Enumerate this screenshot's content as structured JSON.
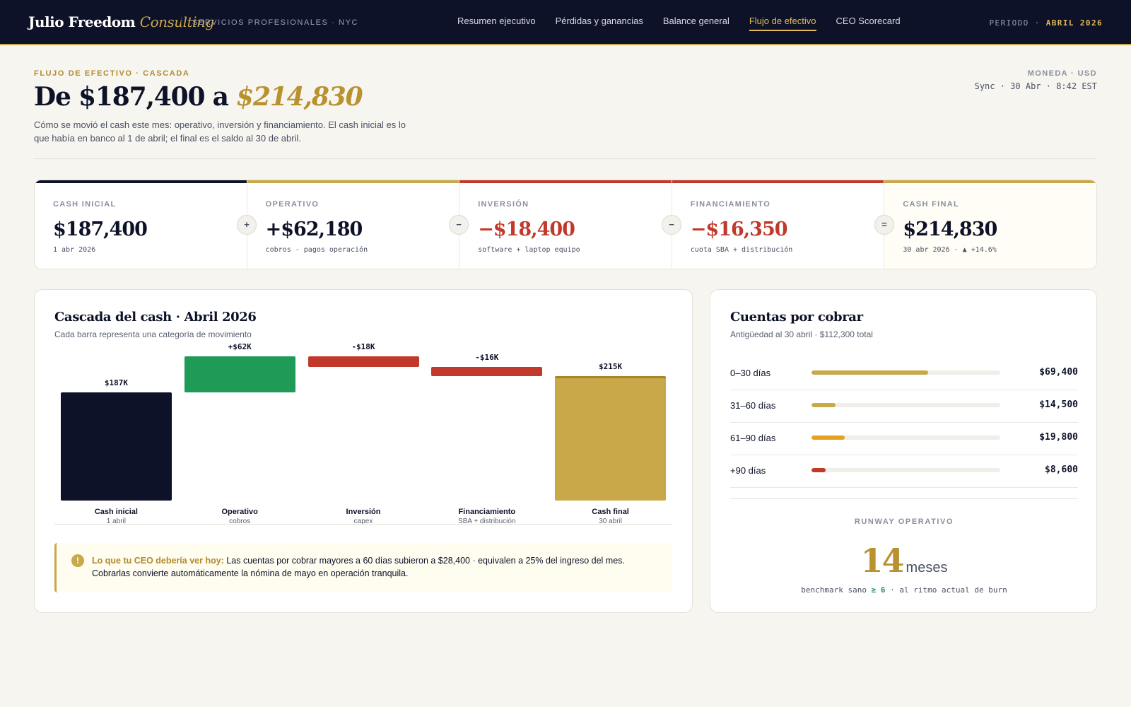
{
  "header": {
    "brand_main": "Julio Freedom",
    "brand_accent": "Consulting",
    "brand_sub": "SERVICIOS PROFESIONALES · NYC",
    "nav": [
      {
        "label": "Resumen ejecutivo"
      },
      {
        "label": "Pérdidas y ganancias"
      },
      {
        "label": "Balance general"
      },
      {
        "label": "Flujo de efectivo"
      },
      {
        "label": "CEO Scorecard"
      }
    ],
    "active_nav": "Flujo de efectivo",
    "period_label": "PERIODO ·",
    "period_value": "ABRIL 2026"
  },
  "page": {
    "eyebrow": "FLUJO DE EFECTIVO · CASCADA",
    "title_main": "De $187,400 a",
    "title_accent": "$214,830",
    "description": "Cómo se movió el cash este mes: operativo, inversión y financiamiento. El cash inicial es lo que había en banco al 1 de abril; el final es el saldo al 30 de abril.",
    "currency": "MONEDA · USD",
    "sync": "Sync · 30 Abr · 8:42 EST"
  },
  "kpis": [
    {
      "label": "CASH INICIAL",
      "value": "$187,400",
      "note": "1 abr 2026",
      "color": "#0d1228",
      "value_color": "#0d1228"
    },
    {
      "label": "OPERATIVO",
      "value": "+$62,180",
      "note": "cobros - pagos operación",
      "color": "#c9a84a",
      "value_color": "#0d1228"
    },
    {
      "label": "INVERSIÓN",
      "value": "−$18,400",
      "note": "software + laptop equipo",
      "color": "#c0392b",
      "value_color": "#c0392b"
    },
    {
      "label": "FINANCIAMIENTO",
      "value": "−$16,350",
      "note": "cuota SBA + distribución",
      "color": "#c0392b",
      "value_color": "#c0392b"
    },
    {
      "label": "CASH FINAL",
      "value": "$214,830",
      "note": "30 abr 2026 · ▲ +14.6%",
      "color": "#c9a84a",
      "value_color": "#0d1228"
    }
  ],
  "operators": [
    "+",
    "−",
    "−",
    "="
  ],
  "waterfall": {
    "title": "Cascada del cash · Abril 2026",
    "subtitle": "Cada barra representa una categoría de movimiento"
  },
  "chart_data": {
    "type": "bar",
    "subtype": "waterfall",
    "categories": [
      "Cash inicial",
      "Operativo",
      "Inversión",
      "Financiamiento",
      "Cash final"
    ],
    "category_subs": [
      "1 abril",
      "cobros",
      "capex",
      "SBA + distribución",
      "30 abril"
    ],
    "values": [
      187400,
      62180,
      -18400,
      -16350,
      214830
    ],
    "data_labels": [
      "$187K",
      "+$62K",
      "-$18K",
      "-$16K",
      "$215K"
    ],
    "kinds": [
      "total",
      "delta",
      "delta",
      "delta",
      "total"
    ],
    "colors": [
      "#0d1228",
      "#1f9a57",
      "#c0392b",
      "#c0392b",
      "#c9a84a"
    ],
    "ylim": [
      0,
      230000
    ]
  },
  "alert": {
    "lead": "Lo que tu CEO debería ver hoy:",
    "text": "Las cuentas por cobrar mayores a 60 días subieron a $28,400 · equivalen a 25% del ingreso del mes. Cobrarlas convierte automáticamente la nómina de mayo en operación tranquila.",
    "icon": "exclamation-icon"
  },
  "receivables": {
    "title": "Cuentas por cobrar",
    "subtitle": "Antigüedad al 30 abril · $112,300 total",
    "rows": [
      {
        "label": "0–30 días",
        "amount": "$69,400",
        "value": 69400,
        "color": "#c9a84a"
      },
      {
        "label": "31–60 días",
        "amount": "$14,500",
        "value": 14500,
        "color": "#c9a84a"
      },
      {
        "label": "61–90 días",
        "amount": "$19,800",
        "value": 19800,
        "color": "#e8a020"
      },
      {
        "label": "+90 días",
        "amount": "$8,600",
        "value": 8600,
        "color": "#c0392b"
      }
    ],
    "scale_max": 112300
  },
  "runway": {
    "label": "RUNWAY OPERATIVO",
    "value": "14",
    "unit": "meses",
    "note_pre": "benchmark sano",
    "note_good": "≥ 6",
    "note_post": "· al ritmo actual de burn"
  }
}
